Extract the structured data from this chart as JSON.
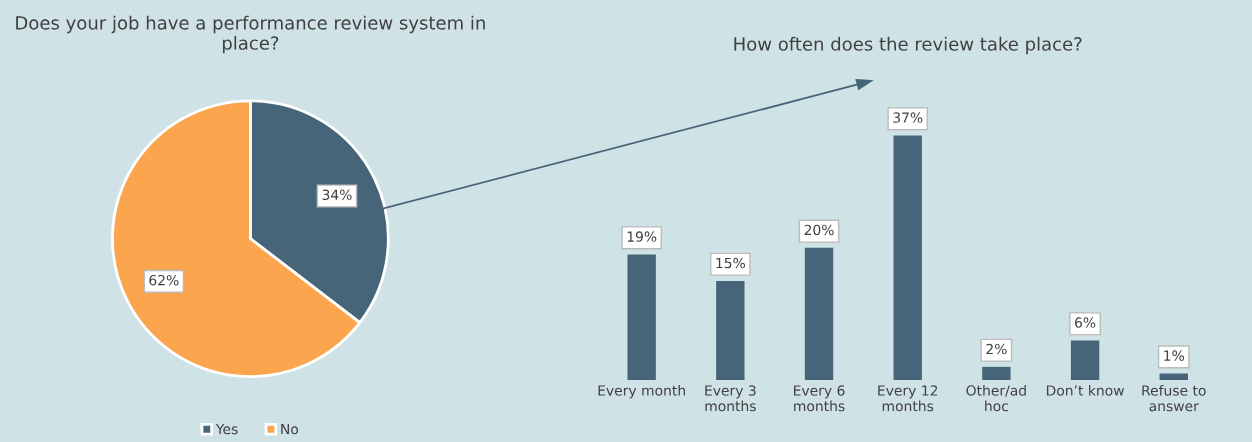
{
  "chart_data": [
    {
      "type": "pie",
      "title": "Does your job have a performance review system in place?",
      "categories": [
        "Yes",
        "No"
      ],
      "values": [
        34,
        62
      ],
      "data_labels": true,
      "value_labels": [
        "34%",
        "62%"
      ],
      "colors": [
        "#476579",
        "#fba64f"
      ],
      "legend": "bottom"
    },
    {
      "type": "bar",
      "title": "How often does the review take place?",
      "categories": [
        "Every month",
        "Every 3\nmonths",
        "Every 6\nmonths",
        "Every 12\nmonths",
        "Other/ad\nhoc",
        "Don’t know",
        "Refuse to\nanswer"
      ],
      "values": [
        19,
        15,
        20,
        37,
        2,
        6,
        1
      ],
      "color": "#476579",
      "data_labels": true,
      "value_labels": [
        "19%",
        "15%",
        "20%",
        "37%",
        "2%",
        "6%",
        "1%"
      ],
      "tick_labels": "x",
      "grid": false
    }
  ]
}
